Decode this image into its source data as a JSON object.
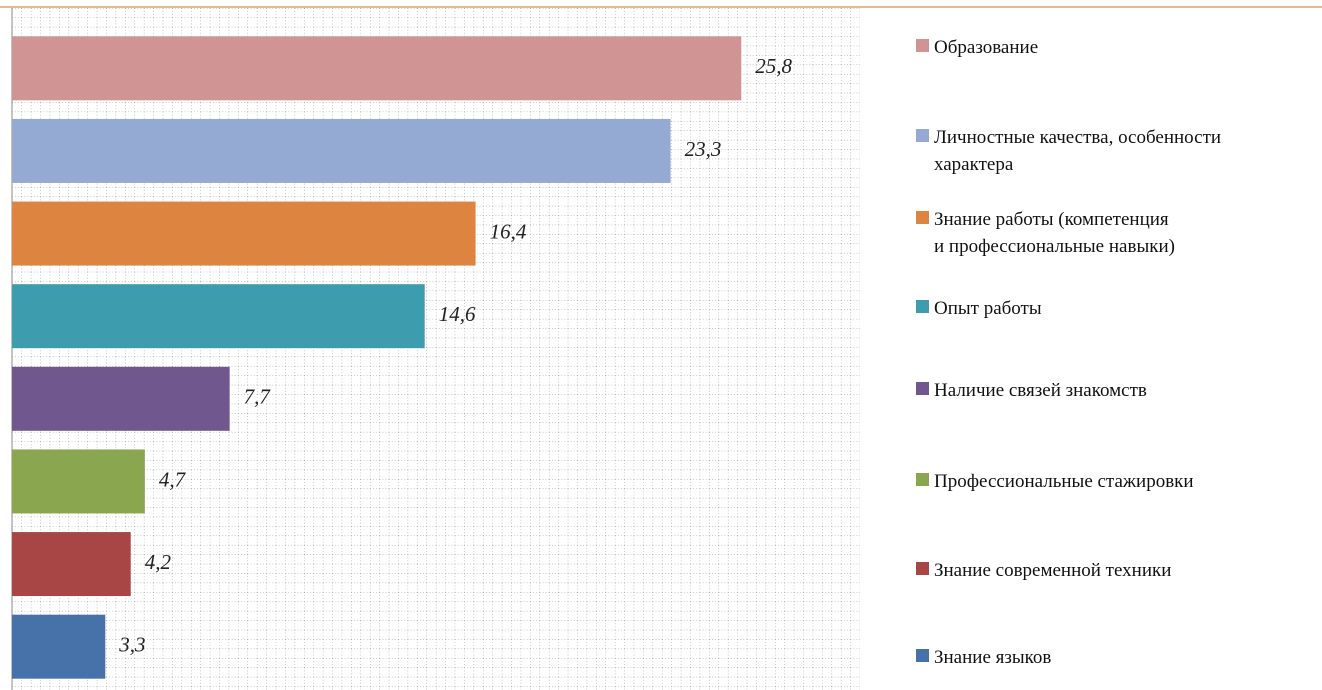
{
  "chart_data": {
    "type": "hbar",
    "categories": [
      "Образование",
      "Личностные качества, особенности\nхарактера",
      "Знание работы (компетенция\nи профессиональные навыки)",
      "Опыт работы",
      "Наличие связей знакомств",
      "Профессиональные стажировки",
      "Знание современной техники",
      "Знание языков"
    ],
    "values": [
      25.8,
      23.3,
      16.4,
      14.6,
      7.7,
      4.7,
      4.2,
      3.3
    ],
    "value_labels": [
      "25,8",
      "23,3",
      "16,4",
      "14,6",
      "7,7",
      "4,7",
      "4,2",
      "3,3"
    ],
    "colors": [
      "#d09494",
      "#94aad2",
      "#dd8540",
      "#3e9caf",
      "#70588f",
      "#8aa64f",
      "#a84646",
      "#4671a9"
    ],
    "xlim": [
      0,
      30
    ],
    "grid": true
  }
}
